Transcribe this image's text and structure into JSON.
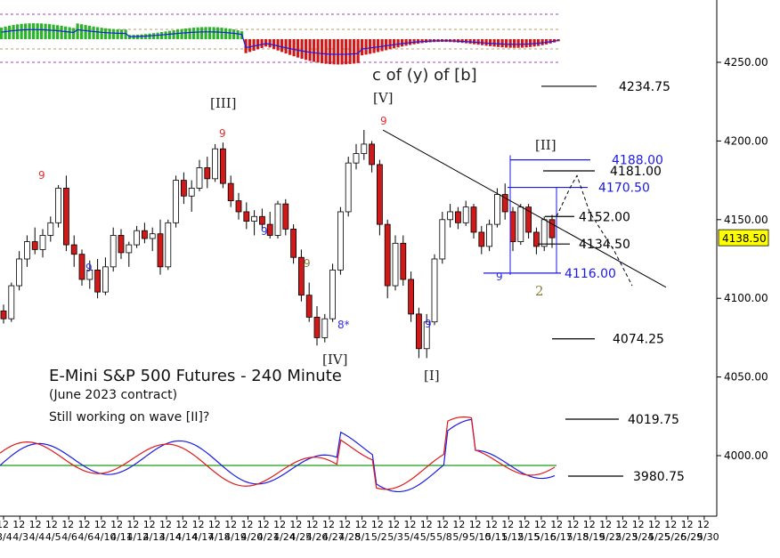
{
  "chart_data": {
    "type": "candlestick",
    "title": "E-Mini S&P 500 Futures - 240 Minute",
    "subtitle": "(June 2023 contract)",
    "note": "Still working on wave [II]?",
    "projection_label": "c of (y) of [b]",
    "ylim": [
      3870,
      4290
    ],
    "y_ticks": [
      {
        "value": 4250,
        "label": "4250.00"
      },
      {
        "value": 4200,
        "label": "4200.00"
      },
      {
        "value": 4150,
        "label": "4150.00"
      },
      {
        "value": 4100,
        "label": "4100.00"
      },
      {
        "value": 4050,
        "label": "4050.00"
      },
      {
        "value": 4000,
        "label": "4000.00"
      }
    ],
    "last_price": {
      "value": 4138.5,
      "label": "4138.50",
      "color": "#ffff00"
    },
    "x_ticks": [
      "3/4",
      "4/3",
      "4/4",
      "4/5",
      "4/6",
      "4/6",
      "4/10",
      "4/11",
      "4/12",
      "4/13",
      "4/14",
      "4/14",
      "4/17",
      "4/18",
      "4/19",
      "4/20",
      "4/21",
      "4/24",
      "4/25",
      "4/26",
      "4/27",
      "4/28",
      "5/1",
      "5/2",
      "5/3",
      "5/4",
      "5/5",
      "5/8",
      "5/9",
      "5/10",
      "5/11",
      "5/12",
      "5/15",
      "5/16",
      "5/17",
      "5/18",
      "5/19",
      "5/22",
      "5/23",
      "5/24",
      "5/25",
      "5/26",
      "5/29",
      "5/30"
    ],
    "candles": [
      [
        4092,
        4096,
        4084,
        4087
      ],
      [
        4087,
        4110,
        4085,
        4108
      ],
      [
        4108,
        4130,
        4105,
        4125
      ],
      [
        4125,
        4140,
        4120,
        4136
      ],
      [
        4136,
        4145,
        4128,
        4131
      ],
      [
        4131,
        4144,
        4126,
        4140
      ],
      [
        4140,
        4152,
        4136,
        4148
      ],
      [
        4148,
        4172,
        4145,
        4170
      ],
      [
        4170,
        4178,
        4130,
        4134
      ],
      [
        4134,
        4140,
        4120,
        4128
      ],
      [
        4128,
        4131,
        4108,
        4112
      ],
      [
        4112,
        4124,
        4106,
        4118
      ],
      [
        4118,
        4125,
        4100,
        4104
      ],
      [
        4104,
        4126,
        4102,
        4120
      ],
      [
        4120,
        4145,
        4117,
        4140
      ],
      [
        4140,
        4144,
        4125,
        4129
      ],
      [
        4129,
        4136,
        4120,
        4134
      ],
      [
        4134,
        4146,
        4132,
        4143
      ],
      [
        4143,
        4148,
        4135,
        4138
      ],
      [
        4138,
        4145,
        4130,
        4141
      ],
      [
        4141,
        4150,
        4115,
        4120
      ],
      [
        4120,
        4150,
        4118,
        4148
      ],
      [
        4148,
        4178,
        4145,
        4175
      ],
      [
        4175,
        4180,
        4160,
        4165
      ],
      [
        4165,
        4175,
        4155,
        4170
      ],
      [
        4170,
        4188,
        4168,
        4183
      ],
      [
        4183,
        4190,
        4170,
        4176
      ],
      [
        4176,
        4198,
        4174,
        4195
      ],
      [
        4195,
        4199,
        4170,
        4173
      ],
      [
        4173,
        4178,
        4158,
        4162
      ],
      [
        4162,
        4167,
        4150,
        4155
      ],
      [
        4155,
        4161,
        4144,
        4149
      ],
      [
        4149,
        4156,
        4140,
        4152
      ],
      [
        4152,
        4157,
        4143,
        4147
      ],
      [
        4147,
        4155,
        4138,
        4140
      ],
      [
        4140,
        4162,
        4138,
        4160
      ],
      [
        4160,
        4163,
        4140,
        4144
      ],
      [
        4144,
        4147,
        4122,
        4126
      ],
      [
        4126,
        4131,
        4098,
        4102
      ],
      [
        4102,
        4110,
        4085,
        4088
      ],
      [
        4088,
        4095,
        4070,
        4075
      ],
      [
        4075,
        4090,
        4072,
        4087
      ],
      [
        4087,
        4122,
        4085,
        4118
      ],
      [
        4118,
        4158,
        4115,
        4155
      ],
      [
        4155,
        4190,
        4152,
        4186
      ],
      [
        4186,
        4198,
        4182,
        4192
      ],
      [
        4192,
        4207,
        4188,
        4198
      ],
      [
        4198,
        4200,
        4180,
        4185
      ],
      [
        4185,
        4188,
        4140,
        4147
      ],
      [
        4147,
        4150,
        4100,
        4108
      ],
      [
        4108,
        4140,
        4105,
        4135
      ],
      [
        4135,
        4140,
        4108,
        4112
      ],
      [
        4112,
        4117,
        4085,
        4090
      ],
      [
        4090,
        4094,
        4062,
        4068
      ],
      [
        4068,
        4090,
        4062,
        4085
      ],
      [
        4085,
        4128,
        4083,
        4125
      ],
      [
        4125,
        4155,
        4122,
        4150
      ],
      [
        4150,
        4160,
        4145,
        4155
      ],
      [
        4155,
        4158,
        4144,
        4148
      ],
      [
        4148,
        4162,
        4146,
        4158
      ],
      [
        4158,
        4160,
        4138,
        4142
      ],
      [
        4142,
        4146,
        4128,
        4133
      ],
      [
        4133,
        4150,
        4130,
        4147
      ],
      [
        4147,
        4170,
        4145,
        4166
      ],
      [
        4166,
        4173,
        4150,
        4155
      ],
      [
        4155,
        4158,
        4130,
        4136
      ],
      [
        4136,
        4160,
        4134,
        4158
      ],
      [
        4158,
        4160,
        4138,
        4142
      ],
      [
        4142,
        4145,
        4128,
        4133
      ],
      [
        4133,
        4152,
        4130,
        4150
      ],
      [
        4150,
        4153,
        4132,
        4138.5
      ]
    ],
    "wave_labels": [
      {
        "text": "[III]",
        "i": 25,
        "v": 4214,
        "color": "#222222"
      },
      {
        "text": "[IV]",
        "i": 40,
        "v": 4058,
        "color": "#222222"
      },
      {
        "text": "[V]",
        "i": 46,
        "v": 4222,
        "color": "#222222"
      },
      {
        "text": "[I]",
        "i": 53,
        "v": 4052,
        "color": "#222222"
      },
      {
        "text": "[II]",
        "i": 67,
        "v": 4193,
        "color": "#222222"
      },
      {
        "text": "2",
        "i": 66,
        "v": 4102,
        "color": "#8b7d3a"
      }
    ],
    "count_labels": [
      {
        "text": "9",
        "i": 5,
        "v": 4178,
        "color": "#e03030"
      },
      {
        "text": "9",
        "i": 10,
        "v": 4100,
        "color": "#3030e0"
      },
      {
        "text": "9",
        "i": 27,
        "v": 4205,
        "color": "#e03030"
      },
      {
        "text": "9",
        "i": 32,
        "v": 4132,
        "color": "#3030e0"
      },
      {
        "text": "9",
        "i": 37,
        "v": 4109,
        "color": "#8b7d3a"
      },
      {
        "text": "8*",
        "i": 41,
        "v": 4080,
        "color": "#3030e0"
      },
      {
        "text": "9",
        "i": 46,
        "v": 4210,
        "color": "#e03030"
      },
      {
        "text": "9",
        "i": 52,
        "v": 4081,
        "color": "#3030e0"
      },
      {
        "text": "9",
        "i": 61,
        "v": 4112,
        "color": "#3030e0"
      }
    ],
    "levels": [
      {
        "value": 4234.75,
        "label": "4234.75",
        "color": "#000000"
      },
      {
        "value": 4188.0,
        "label": "4188.00",
        "color": "#1a1ae6"
      },
      {
        "value": 4181.0,
        "label": "4181.00",
        "color": "#000000"
      },
      {
        "value": 4170.5,
        "label": "4170.50",
        "color": "#1a1ae6"
      },
      {
        "value": 4152.0,
        "label": "4152.00",
        "color": "#000000"
      },
      {
        "value": 4134.5,
        "label": "4134.50",
        "color": "#000000"
      },
      {
        "value": 4116.0,
        "label": "4116.00",
        "color": "#1a1ae6"
      },
      {
        "value": 4074.25,
        "label": "4074.25",
        "color": "#000000"
      },
      {
        "value": 4019.75,
        "label": "4019.75",
        "color": "#000000"
      },
      {
        "value": 3980.75,
        "label": "3980.75",
        "color": "#000000"
      }
    ],
    "trendline": {
      "from": {
        "i": 47,
        "v": 4207
      },
      "to": {
        "i": 81,
        "v": 4107
      }
    },
    "projection": [
      {
        "i": 70,
        "v": 4152
      },
      {
        "i": 71,
        "v": 4170
      },
      {
        "i": 72,
        "v": 4178
      },
      {
        "i": 73,
        "v": 4155
      },
      {
        "i": 75,
        "v": 4130
      },
      {
        "i": 76,
        "v": 4108
      }
    ],
    "colors": {
      "bull": "#ffffff",
      "bear": "#d01a1a",
      "oscillator_up": "#2bb32b",
      "oscillator_down": "#d01a1a",
      "stoch_fast": "#1a1ae6",
      "stoch_slow": "#e01a1a",
      "stoch_mid": "#1a9a1a"
    }
  }
}
